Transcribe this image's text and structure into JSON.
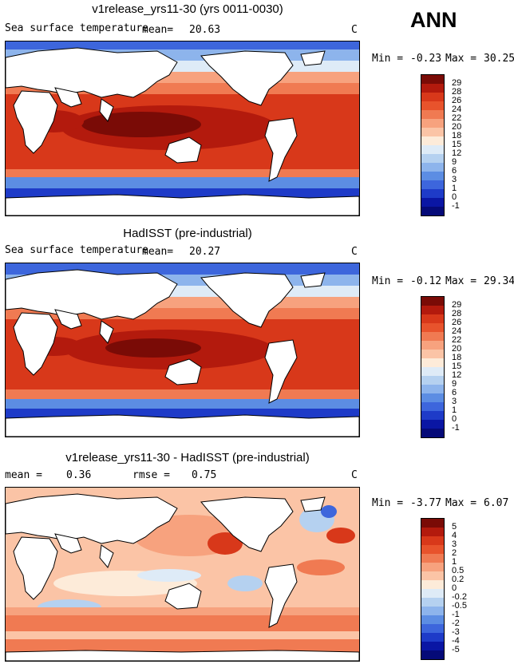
{
  "header": {
    "season_badge": "ANN"
  },
  "panels": [
    {
      "title": "v1release_yrs11-30 (yrs 0011-0030)",
      "label_left": "Sea surface temperature",
      "mean_label": "mean=",
      "mean_value": "20.63",
      "units": "C",
      "min_label": "Min =",
      "min_value": "-0.23",
      "max_label": "Max =",
      "max_value": "30.25",
      "levels": [
        "29",
        "28",
        "26",
        "24",
        "22",
        "20",
        "18",
        "15",
        "12",
        "9",
        "6",
        "3",
        "1",
        "0",
        "-1"
      ],
      "colors": [
        "#7a0b06",
        "#b31a0d",
        "#d8381a",
        "#e8532c",
        "#f07a52",
        "#f7a27e",
        "#fbc4a6",
        "#fdebd9",
        "#deebf7",
        "#b5d1f0",
        "#8db4ec",
        "#5c8de3",
        "#3d66dc",
        "#1e3bc8",
        "#0a16a4",
        "#050a78"
      ]
    },
    {
      "title": "HadISST (pre-industrial)",
      "label_left": "Sea surface temperature",
      "mean_label": "mean=",
      "mean_value": "20.27",
      "units": "C",
      "min_label": "Min =",
      "min_value": "-0.12",
      "max_label": "Max =",
      "max_value": "29.34",
      "levels": [
        "29",
        "28",
        "26",
        "24",
        "22",
        "20",
        "18",
        "15",
        "12",
        "9",
        "6",
        "3",
        "1",
        "0",
        "-1"
      ],
      "colors": [
        "#7a0b06",
        "#b31a0d",
        "#d8381a",
        "#e8532c",
        "#f07a52",
        "#f7a27e",
        "#fbc4a6",
        "#fdebd9",
        "#deebf7",
        "#b5d1f0",
        "#8db4ec",
        "#5c8de3",
        "#3d66dc",
        "#1e3bc8",
        "#0a16a4",
        "#050a78"
      ]
    },
    {
      "title": "v1release_yrs11-30 - HadISST (pre-industrial)",
      "mean_label": "mean =",
      "mean_value": "0.36",
      "rmse_label": "rmse =",
      "rmse_value": "0.75",
      "units": "C",
      "min_label": "Min =",
      "min_value": "-3.77",
      "max_label": "Max =",
      "max_value": "6.07",
      "levels": [
        "5",
        "4",
        "3",
        "2",
        "1",
        "0.5",
        "0.2",
        "0",
        "-0.2",
        "-0.5",
        "-1",
        "-2",
        "-3",
        "-4",
        "-5"
      ],
      "colors": [
        "#7a0b06",
        "#b31a0d",
        "#d8381a",
        "#e8532c",
        "#f07a52",
        "#f7a27e",
        "#fbc4a6",
        "#fdebd9",
        "#deebf7",
        "#b5d1f0",
        "#8db4ec",
        "#5c8de3",
        "#3d66dc",
        "#1e3bc8",
        "#0a16a4",
        "#050a78"
      ]
    }
  ]
}
